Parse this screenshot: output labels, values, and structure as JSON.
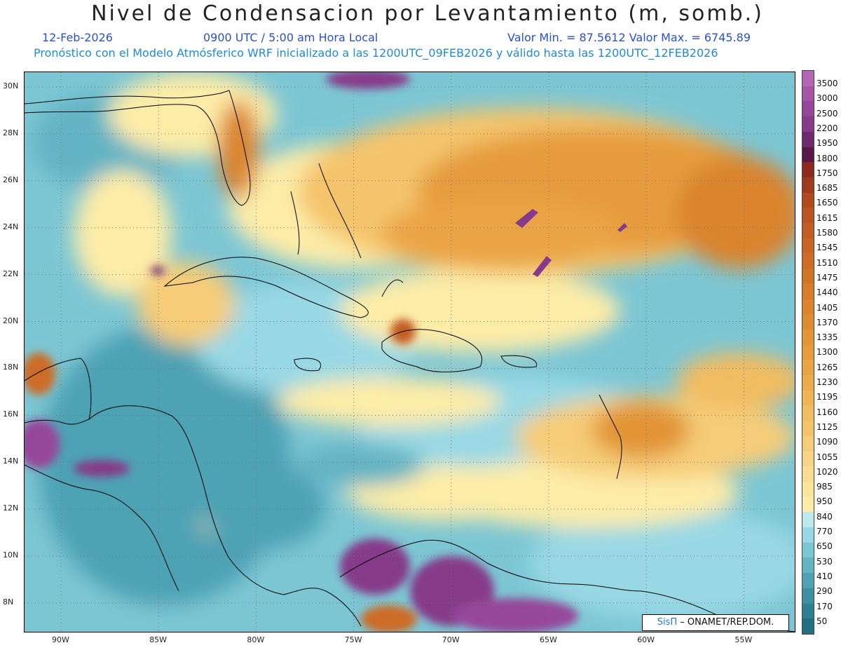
{
  "title": "Nivel de Condensacion por Levantamiento (m, somb.)",
  "date": "12-Feb-2026",
  "time": "0900 UTC / 5:00 am Hora Local",
  "minmax": "Valor Min. = 87.5612  Valor Max. = 6745.89",
  "forecast": "Pronóstico con el Modelo Atmósferico WRF inicializado a las 1200UTC_09FEB2026 y válido hasta las  1200UTC_12FEB2026",
  "credit": {
    "brand": "SisΠ",
    "text": " – ONAMET/REP.DOM."
  },
  "lat_labels": [
    "30N",
    "28N",
    "26N",
    "24N",
    "22N",
    "20N",
    "18N",
    "16N",
    "14N",
    "12N",
    "10N",
    "8N"
  ],
  "lon_labels": [
    "90W",
    "85W",
    "80W",
    "75W",
    "70W",
    "65W",
    "60W",
    "55W"
  ],
  "colorbar": {
    "labels": [
      "3500",
      "3000",
      "2500",
      "2200",
      "1950",
      "1800",
      "1750",
      "1685",
      "1650",
      "1615",
      "1580",
      "1545",
      "1510",
      "1475",
      "1440",
      "1405",
      "1370",
      "1335",
      "1300",
      "1265",
      "1230",
      "1195",
      "1160",
      "1125",
      "1090",
      "1055",
      "1020",
      "985",
      "950",
      "840",
      "770",
      "650",
      "530",
      "410",
      "290",
      "170",
      "50"
    ],
    "colors": [
      "#b466b4",
      "#a855a8",
      "#96469a",
      "#863a8a",
      "#6e2870",
      "#5a1848",
      "#8a2a1e",
      "#a03a1e",
      "#b04a1e",
      "#bb5420",
      "#c25c22",
      "#c86424",
      "#cd6c26",
      "#d27428",
      "#d67c2a",
      "#da842e",
      "#de8c32",
      "#e29436",
      "#e69c3c",
      "#eaa444",
      "#edac4c",
      "#f0b456",
      "#f2bc60",
      "#f4c46c",
      "#f6cc78",
      "#f8d484",
      "#fadc90",
      "#fbe49c",
      "#fdeca8",
      "#bfe8ee",
      "#98d8e4",
      "#7cc6d4",
      "#64b4c4",
      "#4ea2b4",
      "#3c90a4",
      "#2e8094",
      "#226e84"
    ]
  }
}
